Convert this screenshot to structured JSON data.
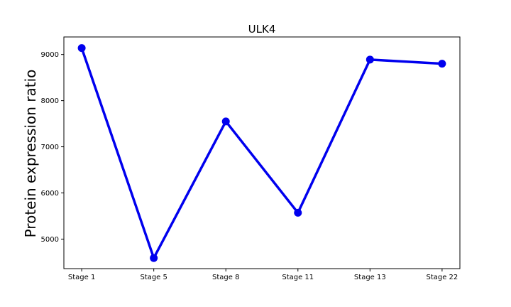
{
  "chart_data": {
    "type": "line",
    "title": "ULK4",
    "xlabel": "",
    "ylabel": "Protein expression ratio",
    "categories": [
      "Stage 1",
      "Stage 5",
      "Stage 8",
      "Stage 11",
      "Stage 13",
      "Stage 22"
    ],
    "series": [
      {
        "values": [
          9140,
          4590,
          7550,
          5570,
          8890,
          8800
        ],
        "color": "#0000ee"
      }
    ],
    "yticks": [
      5000,
      6000,
      7000,
      8000,
      9000
    ],
    "ylim": [
      4360,
      9380
    ],
    "grid": false
  }
}
